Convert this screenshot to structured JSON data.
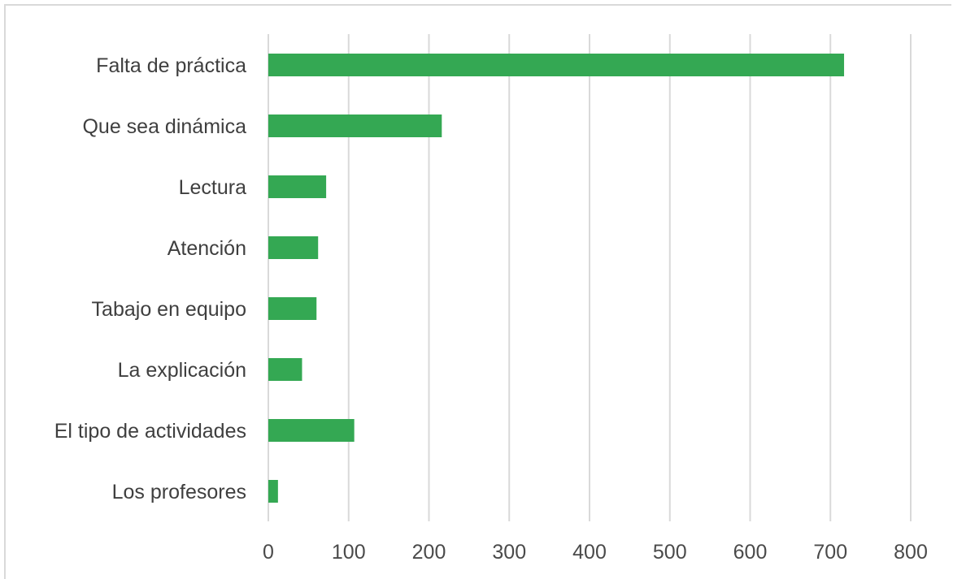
{
  "chart_data": {
    "type": "bar",
    "orientation": "horizontal",
    "title": "",
    "xlabel": "",
    "ylabel": "",
    "categories": [
      "Falta de práctica",
      "Que sea dinámica",
      "Lectura",
      "Atención",
      "Tabajo en equipo",
      "La explicación",
      "El tipo de actividades",
      "Los profesores"
    ],
    "values": [
      717,
      216,
      72,
      62,
      60,
      42,
      107,
      12
    ],
    "xlim": [
      0,
      800
    ],
    "x_ticks": [
      "0",
      "100",
      "200",
      "300",
      "400",
      "500",
      "600",
      "700",
      "800"
    ],
    "grid": "vertical",
    "legend": "none",
    "bar_color": "#34a853",
    "grid_color": "#d9d9d9"
  }
}
